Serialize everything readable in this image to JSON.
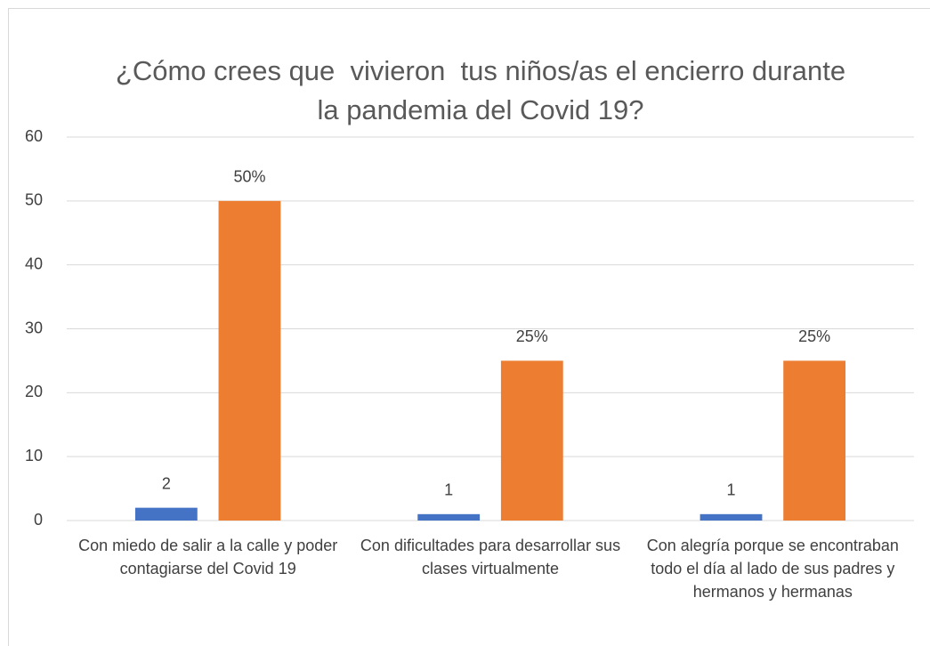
{
  "chart_data": {
    "type": "bar",
    "title": "¿Cómo crees que  vivieron  tus niños/as el encierro durante la pandemia del Covid 19?",
    "categories": [
      "Con miedo de salir a la calle y poder contagiarse del Covid 19",
      "Con dificultades para desarrollar sus clases virtualmente",
      "Con alegría porque se encontraban todo el día al lado de sus padres y hermanos y hermanas"
    ],
    "series": [
      {
        "color": "#4472c4",
        "values": [
          2,
          1,
          1
        ]
      },
      {
        "color": "#ed7d31",
        "values": [
          50,
          25,
          25
        ],
        "value_labels": [
          "50%",
          "25%",
          "25%"
        ]
      }
    ],
    "ylim": [
      0,
      60
    ],
    "yticks": [
      0,
      10,
      20,
      30,
      40,
      50,
      60
    ],
    "grid": true
  }
}
